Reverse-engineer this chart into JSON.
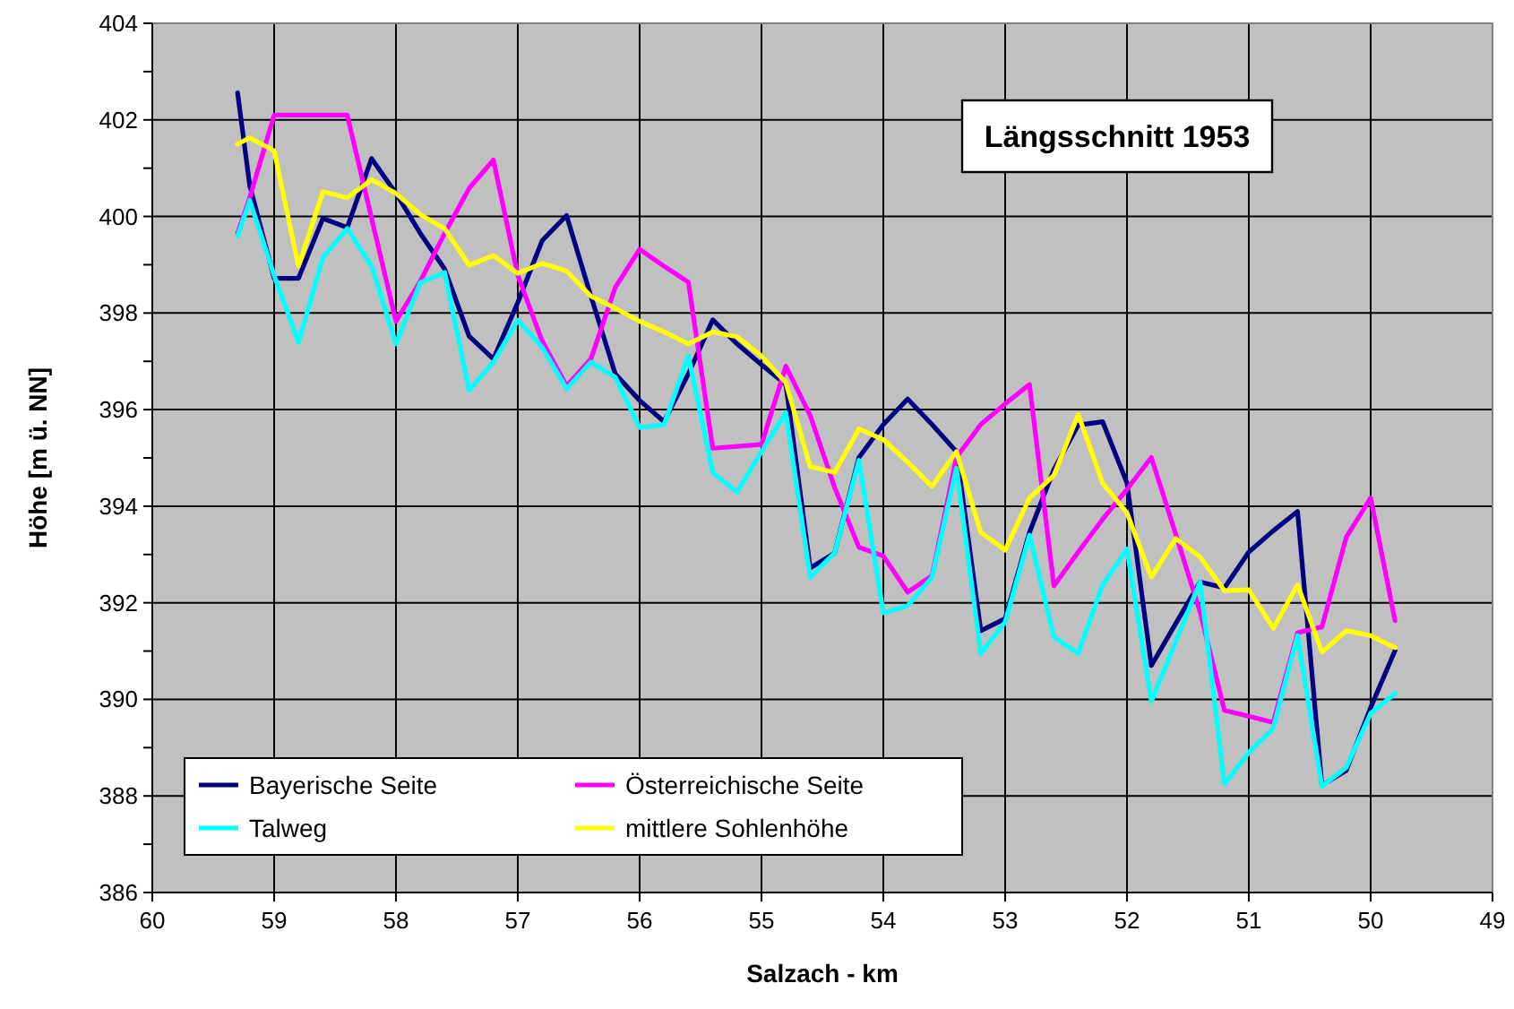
{
  "chart_data": {
    "type": "line",
    "title": "Längsschnitt 1953",
    "xlabel": "Salzach - km",
    "ylabel": "Höhe [m ü. NN]",
    "x": [
      59.3,
      59.2,
      59.0,
      58.8,
      58.6,
      58.4,
      58.2,
      58.0,
      57.8,
      57.6,
      57.4,
      57.2,
      57.0,
      56.8,
      56.6,
      56.4,
      56.2,
      56.0,
      55.8,
      55.6,
      55.4,
      55.2,
      55.0,
      54.8,
      54.6,
      54.4,
      54.2,
      54.0,
      53.8,
      53.6,
      53.4,
      53.2,
      53.0,
      52.8,
      52.6,
      52.4,
      52.2,
      52.0,
      51.8,
      51.6,
      51.4,
      51.2,
      51.0,
      50.8,
      50.6,
      50.4,
      50.2,
      50.0,
      49.8
    ],
    "series": [
      {
        "name": "Bayerische Seite",
        "color": "#000080",
        "values": [
          402.56,
          400.64,
          398.72,
          398.72,
          399.96,
          399.77,
          401.2,
          400.48,
          399.65,
          398.91,
          397.52,
          397.05,
          398.22,
          399.5,
          400.02,
          398.35,
          396.74,
          396.19,
          395.75,
          396.74,
          397.86,
          397.36,
          396.93,
          396.52,
          392.72,
          393.03,
          395.01,
          395.69,
          396.22,
          395.69,
          395.13,
          391.42,
          391.67,
          393.46,
          394.76,
          395.68,
          395.75,
          394.48,
          390.7,
          391.57,
          392.43,
          392.31,
          393.05,
          393.49,
          393.89,
          388.22,
          388.53,
          389.83,
          391.01
        ]
      },
      {
        "name": "Österreichische Seite",
        "color": "#ff00ff",
        "values": [
          399.65,
          400.39,
          402.1,
          402.1,
          402.1,
          402.1,
          399.96,
          397.83,
          398.66,
          399.65,
          400.58,
          401.17,
          398.78,
          397.42,
          396.49,
          397.05,
          398.53,
          399.32,
          398.97,
          398.64,
          395.2,
          395.24,
          395.28,
          396.9,
          395.88,
          394.39,
          393.15,
          392.97,
          392.22,
          392.56,
          395.01,
          395.69,
          396.12,
          396.52,
          392.35,
          393.05,
          393.73,
          394.35,
          395.01,
          393.42,
          391.81,
          389.77,
          389.65,
          389.52,
          391.38,
          391.5,
          393.36,
          394.17,
          391.63
        ]
      },
      {
        "name": "Talweg",
        "color": "#00ffff",
        "values": [
          399.59,
          400.33,
          398.78,
          397.39,
          399.15,
          399.75,
          398.97,
          397.36,
          398.63,
          398.84,
          396.4,
          396.98,
          397.85,
          397.29,
          396.43,
          396.98,
          396.67,
          395.63,
          395.69,
          397.11,
          394.7,
          394.29,
          395.13,
          395.94,
          392.53,
          393.03,
          394.95,
          391.79,
          391.94,
          392.53,
          394.79,
          390.95,
          391.6,
          393.4,
          391.29,
          390.95,
          392.37,
          393.11,
          389.96,
          391.2,
          392.43,
          388.25,
          388.9,
          389.4,
          391.32,
          388.2,
          388.59,
          389.71,
          390.12
        ]
      },
      {
        "name": "mittlere Sohlenhöhe",
        "color": "#ffff00",
        "values": [
          401.5,
          401.63,
          401.36,
          398.97,
          400.51,
          400.39,
          400.76,
          400.48,
          400.04,
          399.75,
          398.99,
          399.19,
          398.82,
          399.03,
          398.87,
          398.35,
          398.1,
          397.83,
          397.61,
          397.36,
          397.61,
          397.51,
          397.11,
          396.56,
          394.82,
          394.7,
          395.6,
          395.38,
          394.91,
          394.41,
          395.13,
          393.46,
          393.09,
          394.17,
          394.64,
          395.9,
          394.48,
          393.86,
          392.53,
          393.33,
          392.95,
          392.25,
          392.27,
          391.47,
          392.37,
          390.98,
          391.42,
          391.32,
          391.07
        ]
      }
    ],
    "xlim": [
      60,
      49
    ],
    "xticks": [
      60,
      59,
      58,
      57,
      56,
      55,
      54,
      53,
      52,
      51,
      50,
      49
    ],
    "ylim": [
      386,
      404
    ],
    "yticks": [
      386,
      {
        "value": 387,
        "label": null
      },
      388,
      {
        "value": 389,
        "label": null
      },
      390,
      {
        "value": 391,
        "label": null
      },
      392,
      {
        "value": 393,
        "label": null
      },
      394,
      {
        "value": 395,
        "label": null
      },
      396,
      {
        "value": 397,
        "label": null
      },
      398,
      {
        "value": 399,
        "label": null
      },
      400,
      {
        "value": 401,
        "label": null
      },
      402,
      {
        "value": 403,
        "label": null
      },
      404
    ],
    "grid": true,
    "legend": "bottom left",
    "line_style": "solid"
  }
}
